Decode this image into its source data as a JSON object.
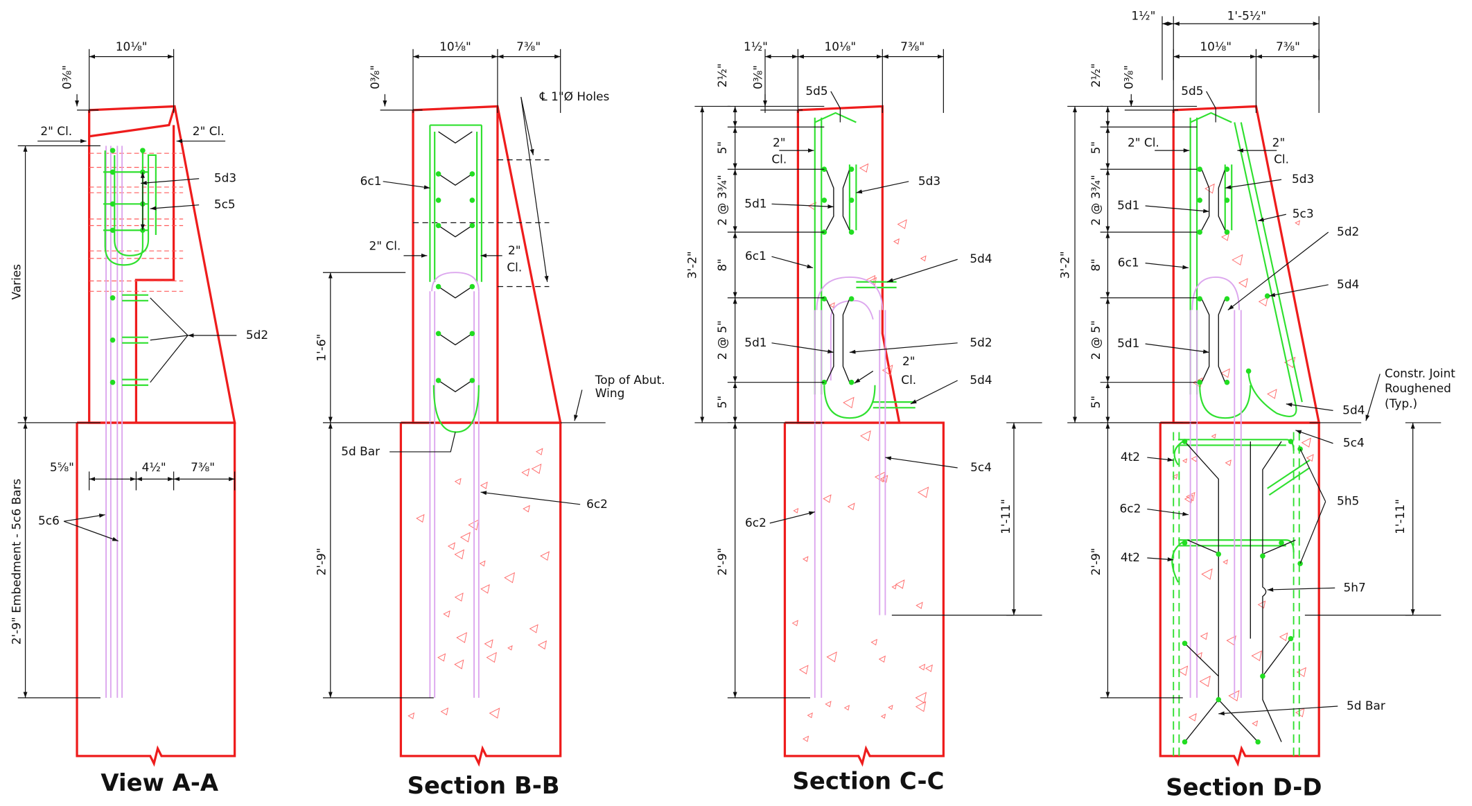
{
  "views": [
    {
      "title": "View A-A",
      "labels": [
        "10⅛\"",
        "0⅜\"",
        "2\" Cl.",
        "2\" Cl.",
        "5d3",
        "5c5",
        "Varies",
        "5d2",
        "5⅝\"",
        "4½\"",
        "7⅜\"",
        "5c6",
        "2'-9\" Embedment - 5c6 Bars"
      ]
    },
    {
      "title": "Section B-B",
      "labels": [
        "10⅛\"",
        "7⅜\"",
        "0⅜\"",
        "℄ 1\"Ø Holes",
        "6c1",
        "2\" Cl.",
        "2\"",
        "Cl.",
        "1'-6\"",
        "Top of Abut.",
        "Wing",
        "5d Bar",
        "6c2",
        "2'-9\""
      ]
    },
    {
      "title": "Section C-C",
      "labels": [
        "1½\"",
        "10⅛\"",
        "7⅜\"",
        "2½\"",
        "0⅜\"",
        "5d5",
        "5\"",
        "2\"",
        "Cl.",
        "5d3",
        "2 @ 3¾\"",
        "5d1",
        "6c1",
        "5d4",
        "3'-2\"",
        "8\"",
        "2 @ 5\"",
        "5d1",
        "5d2",
        "2\"",
        "Cl.",
        "5d4",
        "5\"",
        "5c4",
        "6c2",
        "1'-11\"",
        "2'-9\""
      ]
    },
    {
      "title": "Section D-D",
      "labels": [
        "1½\"",
        "1'-5½\"",
        "10⅛\"",
        "7⅜\"",
        "2½\"",
        "0⅜\"",
        "5d5",
        "5\"",
        "2\" Cl.",
        "2\"",
        "Cl.",
        "5d3",
        "2 @ 3¾\"",
        "5d1",
        "5c3",
        "5d2",
        "6c1",
        "3'-2\"",
        "8\"",
        "5d4",
        "2 @ 5\"",
        "5d1",
        "Constr. Joint",
        "Roughened",
        "(Typ.)",
        "5\"",
        "5d4",
        "5c4",
        "4t2",
        "5h5",
        "6c2",
        "1'-11\"",
        "4t2",
        "2'-9\"",
        "5h7",
        "5d Bar"
      ]
    }
  ]
}
